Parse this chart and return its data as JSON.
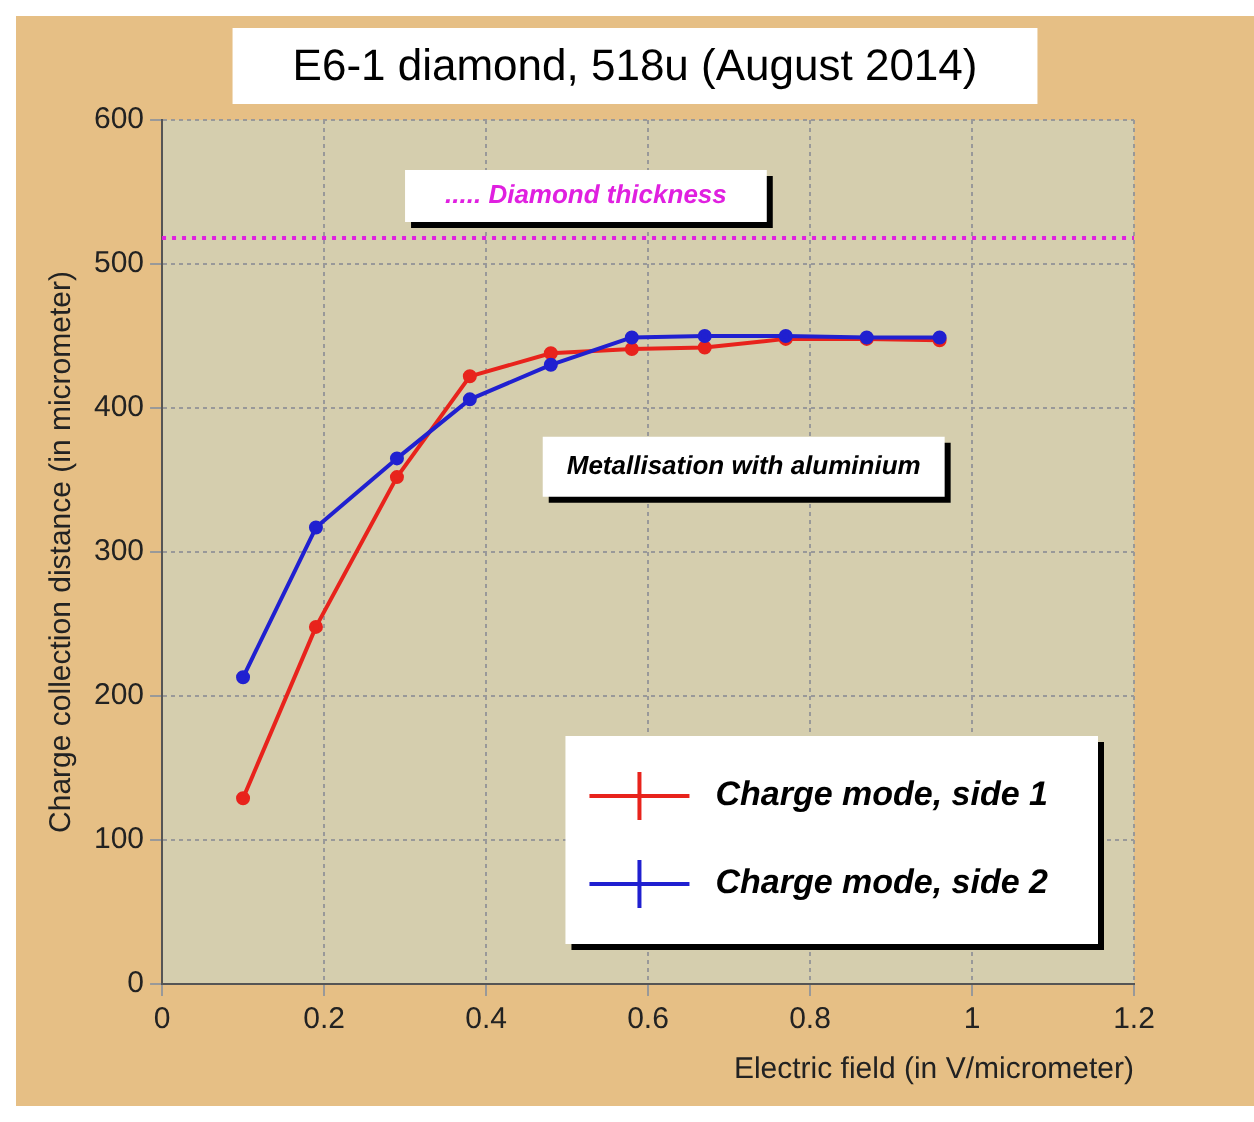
{
  "chart_data": {
    "type": "line",
    "title": "E6-1 diamond, 518u (August 2014)",
    "xlabel": "Electric field (in V/micrometer)",
    "ylabel": "Charge collection distance (in micrometer)",
    "series": [
      {
        "name": "Charge mode, side 1",
        "color": "#e8231c",
        "x": [
          0.1,
          0.19,
          0.29,
          0.38,
          0.48,
          0.58,
          0.67,
          0.77,
          0.87,
          0.96
        ],
        "values": [
          129,
          248,
          352,
          422,
          438,
          441,
          442,
          448,
          448,
          447
        ]
      },
      {
        "name": "Charge mode, side 2",
        "color": "#2020d0",
        "x": [
          0.1,
          0.19,
          0.29,
          0.38,
          0.48,
          0.58,
          0.67,
          0.77,
          0.87,
          0.96
        ],
        "values": [
          213,
          317,
          365,
          406,
          430,
          449,
          450,
          450,
          449,
          449
        ]
      }
    ],
    "xlim": [
      0,
      1.2
    ],
    "xticks": [
      0,
      0.2,
      0.4,
      0.6,
      0.8,
      1,
      1.2
    ],
    "ylim": [
      0,
      600
    ],
    "yticks": [
      0,
      100,
      200,
      300,
      400,
      500,
      600
    ],
    "ref_lines": [
      {
        "axis": "y",
        "value": 518,
        "label": "..... Diamond thickness",
        "color": "#e020e0",
        "line_style": "dotted"
      }
    ],
    "annotations": [
      "Metallisation with aluminium"
    ],
    "grid": true,
    "legend": "bottom right",
    "marker": "circle",
    "line_style": "solid"
  }
}
